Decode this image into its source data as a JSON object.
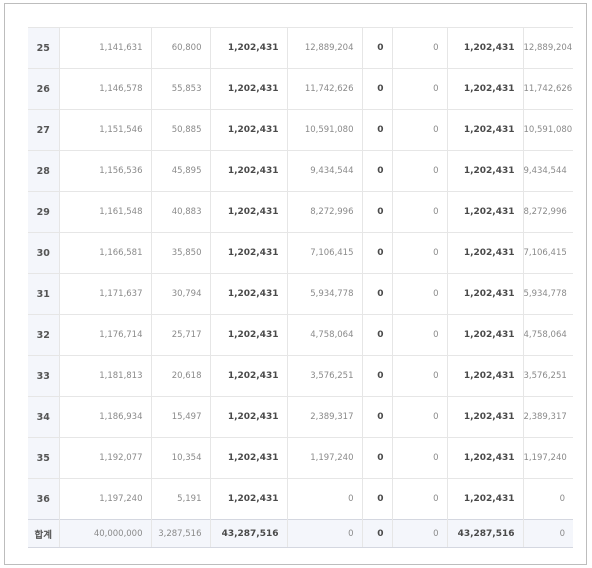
{
  "table": {
    "rows": [
      {
        "no": "25",
        "principal": "1,141,631",
        "interest": "60,800",
        "payment": "1,202,431",
        "balance": "12,889,204",
        "col6": "0",
        "col7": "0",
        "payment2": "1,202,431",
        "balance2": "12,889,204"
      },
      {
        "no": "26",
        "principal": "1,146,578",
        "interest": "55,853",
        "payment": "1,202,431",
        "balance": "11,742,626",
        "col6": "0",
        "col7": "0",
        "payment2": "1,202,431",
        "balance2": "11,742,626"
      },
      {
        "no": "27",
        "principal": "1,151,546",
        "interest": "50,885",
        "payment": "1,202,431",
        "balance": "10,591,080",
        "col6": "0",
        "col7": "0",
        "payment2": "1,202,431",
        "balance2": "10,591,080"
      },
      {
        "no": "28",
        "principal": "1,156,536",
        "interest": "45,895",
        "payment": "1,202,431",
        "balance": "9,434,544",
        "col6": "0",
        "col7": "0",
        "payment2": "1,202,431",
        "balance2": "9,434,544"
      },
      {
        "no": "29",
        "principal": "1,161,548",
        "interest": "40,883",
        "payment": "1,202,431",
        "balance": "8,272,996",
        "col6": "0",
        "col7": "0",
        "payment2": "1,202,431",
        "balance2": "8,272,996"
      },
      {
        "no": "30",
        "principal": "1,166,581",
        "interest": "35,850",
        "payment": "1,202,431",
        "balance": "7,106,415",
        "col6": "0",
        "col7": "0",
        "payment2": "1,202,431",
        "balance2": "7,106,415"
      },
      {
        "no": "31",
        "principal": "1,171,637",
        "interest": "30,794",
        "payment": "1,202,431",
        "balance": "5,934,778",
        "col6": "0",
        "col7": "0",
        "payment2": "1,202,431",
        "balance2": "5,934,778"
      },
      {
        "no": "32",
        "principal": "1,176,714",
        "interest": "25,717",
        "payment": "1,202,431",
        "balance": "4,758,064",
        "col6": "0",
        "col7": "0",
        "payment2": "1,202,431",
        "balance2": "4,758,064"
      },
      {
        "no": "33",
        "principal": "1,181,813",
        "interest": "20,618",
        "payment": "1,202,431",
        "balance": "3,576,251",
        "col6": "0",
        "col7": "0",
        "payment2": "1,202,431",
        "balance2": "3,576,251"
      },
      {
        "no": "34",
        "principal": "1,186,934",
        "interest": "15,497",
        "payment": "1,202,431",
        "balance": "2,389,317",
        "col6": "0",
        "col7": "0",
        "payment2": "1,202,431",
        "balance2": "2,389,317"
      },
      {
        "no": "35",
        "principal": "1,192,077",
        "interest": "10,354",
        "payment": "1,202,431",
        "balance": "1,197,240",
        "col6": "0",
        "col7": "0",
        "payment2": "1,202,431",
        "balance2": "1,197,240"
      },
      {
        "no": "36",
        "principal": "1,197,240",
        "interest": "5,191",
        "payment": "1,202,431",
        "balance": "0",
        "col6": "0",
        "col7": "0",
        "payment2": "1,202,431",
        "balance2": "0"
      }
    ],
    "total": {
      "label": "합계",
      "principal": "40,000,000",
      "interest": "3,287,516",
      "payment": "43,287,516",
      "balance": "0",
      "col6": "0",
      "col7": "0",
      "payment2": "43,287,516",
      "balance2": "0"
    }
  }
}
